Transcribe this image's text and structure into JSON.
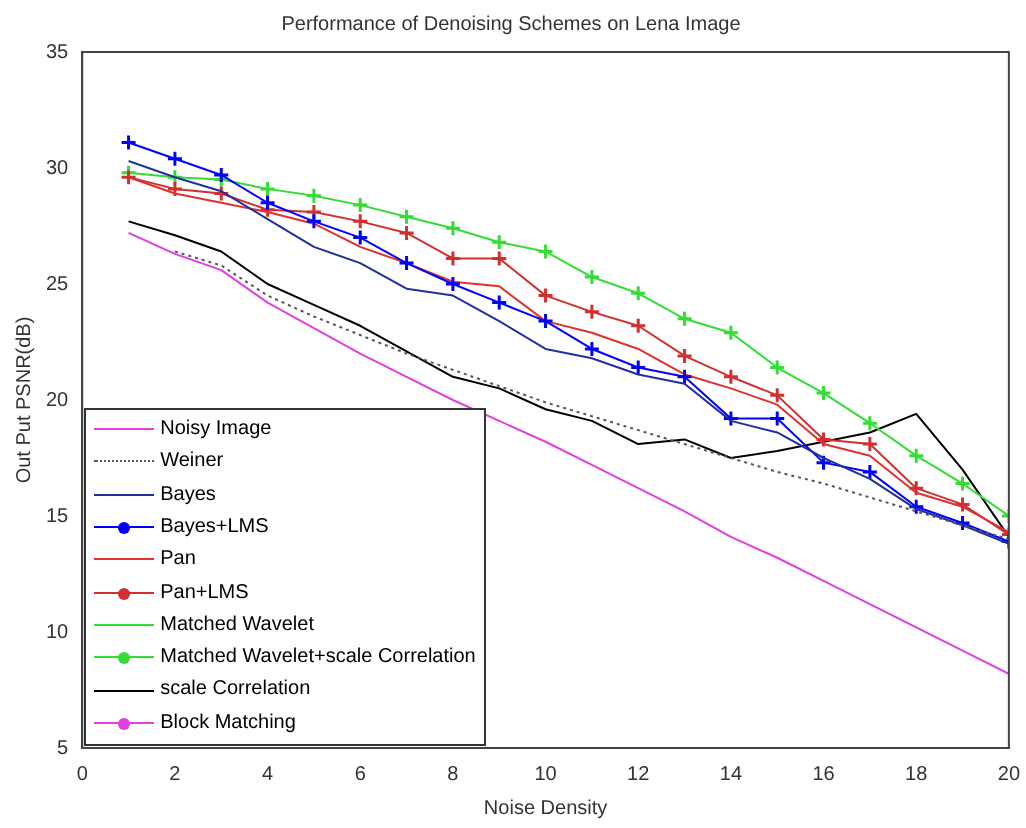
{
  "chart_data": {
    "type": "line",
    "title": "Performance of Denoising Schemes on Lena Image",
    "xlabel": "Noise Density",
    "ylabel": "Out Put PSNR(dB)",
    "x": [
      1,
      2,
      3,
      4,
      5,
      6,
      7,
      8,
      9,
      10,
      11,
      12,
      13,
      14,
      15,
      16,
      17,
      18,
      19,
      20
    ],
    "xlim": [
      0,
      20
    ],
    "xticks": [
      0,
      2,
      4,
      6,
      8,
      10,
      12,
      14,
      16,
      18,
      20
    ],
    "ylim": [
      5,
      35
    ],
    "yticks": [
      5,
      10,
      15,
      20,
      25,
      30,
      35
    ],
    "grid": false,
    "legend": "bottom left",
    "marker": "none",
    "line_style": "solid",
    "series": [
      {
        "name": "Noisy Image",
        "color": "#e040e0",
        "values": [
          27.2,
          26.3,
          25.6,
          24.2,
          23.1,
          22.0,
          21.0,
          20.0,
          19.1,
          18.2,
          17.2,
          16.2,
          15.2,
          14.1,
          13.2,
          12.2,
          11.2,
          10.2,
          9.2,
          8.2
        ]
      },
      {
        "name": "Weiner",
        "color": "#555555",
        "line_style": "dotted",
        "values": [
          null,
          26.4,
          25.8,
          24.5,
          23.6,
          22.8,
          22.0,
          21.3,
          20.6,
          19.9,
          19.3,
          18.7,
          18.1,
          17.5,
          16.9,
          16.4,
          15.8,
          15.2,
          14.6,
          14.0
        ]
      },
      {
        "name": "Bayes",
        "color": "#2030a0",
        "values": [
          30.3,
          29.6,
          29.0,
          27.8,
          26.6,
          25.9,
          24.8,
          24.5,
          23.4,
          22.2,
          21.8,
          21.1,
          20.7,
          19.1,
          18.6,
          17.5,
          16.6,
          15.3,
          14.6,
          13.8
        ]
      },
      {
        "name": "Bayes+LMS",
        "color": "#0000ff",
        "marker": "cross",
        "values": [
          31.1,
          30.4,
          29.7,
          28.5,
          27.7,
          27.0,
          25.9,
          25.0,
          24.2,
          23.4,
          22.2,
          21.4,
          21.0,
          19.2,
          19.2,
          17.3,
          16.9,
          15.4,
          14.7,
          13.9
        ]
      },
      {
        "name": "Pan",
        "color": "#e03030",
        "values": [
          29.6,
          28.9,
          28.5,
          28.1,
          27.6,
          26.6,
          25.9,
          25.1,
          24.9,
          23.4,
          22.9,
          22.2,
          21.1,
          20.5,
          19.8,
          18.1,
          17.6,
          16.0,
          15.4,
          14.3
        ]
      },
      {
        "name": "Pan+LMS",
        "color": "#d03030",
        "marker": "cross",
        "values": [
          29.6,
          29.1,
          28.9,
          28.2,
          28.1,
          27.7,
          27.2,
          26.1,
          26.1,
          24.5,
          23.8,
          23.2,
          21.9,
          21.0,
          20.2,
          18.3,
          18.1,
          16.2,
          15.5,
          14.2
        ]
      },
      {
        "name": "Matched Wavelet",
        "color": "#33dd33",
        "values": [
          null,
          null,
          null,
          null,
          null,
          null,
          null,
          null,
          null,
          null,
          null,
          null,
          null,
          null,
          null,
          null,
          null,
          null,
          null,
          null
        ]
      },
      {
        "name": "Matched Wavelet+scale Correlation",
        "color": "#33dd33",
        "marker": "cross",
        "values": [
          29.8,
          29.6,
          29.5,
          29.1,
          28.8,
          28.4,
          27.9,
          27.4,
          26.8,
          26.4,
          25.3,
          24.6,
          23.5,
          22.9,
          21.4,
          20.3,
          19.0,
          17.6,
          16.4,
          15.0
        ]
      },
      {
        "name": "scale Correlation",
        "color": "#000000",
        "values": [
          27.7,
          27.1,
          26.4,
          25.0,
          24.1,
          23.2,
          22.1,
          21.0,
          20.5,
          19.6,
          19.1,
          18.1,
          18.3,
          17.5,
          17.8,
          18.2,
          18.6,
          19.4,
          17.0,
          14.1
        ]
      },
      {
        "name": "Block Matching",
        "color": "#e040e0",
        "marker": "cross",
        "values": [
          null,
          null,
          null,
          null,
          null,
          null,
          null,
          null,
          null,
          null,
          null,
          null,
          null,
          null,
          null,
          null,
          null,
          null,
          null,
          null
        ]
      }
    ]
  }
}
